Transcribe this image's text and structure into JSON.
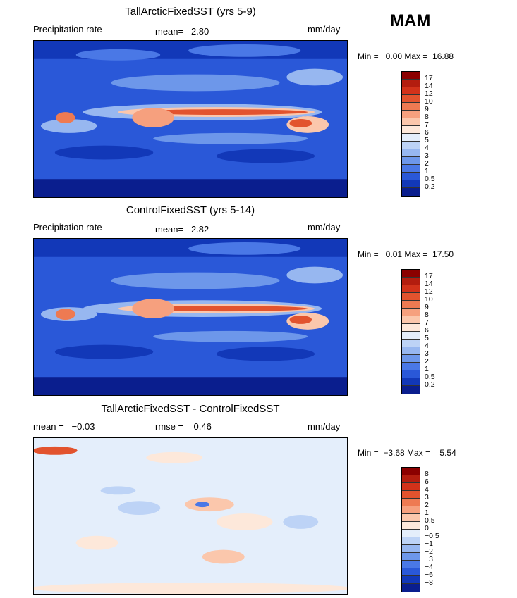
{
  "season": "MAM",
  "panels": [
    {
      "title": "TallArcticFixedSST (yrs 5-9)",
      "left_label": "Precipitation rate",
      "mid_label": "mean=   2.80",
      "units": "mm/day",
      "minmax": "Min =   0.00 Max =  16.88",
      "colors": [
        "#8b0000",
        "#b31d0f",
        "#d2321a",
        "#e2532e",
        "#ee7a52",
        "#f6a07e",
        "#fbc7ac",
        "#fde8da",
        "#e4eefb",
        "#bdd3f6",
        "#97b7f0",
        "#6d97ea",
        "#4a78e6",
        "#2a58d8",
        "#1238b8",
        "#0a1e8e"
      ],
      "ticks": [
        "17",
        "14",
        "12",
        "10",
        "9",
        "8",
        "7",
        "6",
        "5",
        "4",
        "3",
        "2",
        "1",
        "0.5",
        "0.2"
      ]
    },
    {
      "title": "ControlFixedSST (yrs 5-14)",
      "left_label": "Precipitation rate",
      "mid_label": "mean=   2.82",
      "units": "mm/day",
      "minmax": "Min =   0.01 Max =  17.50",
      "colors": [
        "#8b0000",
        "#b31d0f",
        "#d2321a",
        "#e2532e",
        "#ee7a52",
        "#f6a07e",
        "#fbc7ac",
        "#fde8da",
        "#e4eefb",
        "#bdd3f6",
        "#97b7f0",
        "#6d97ea",
        "#4a78e6",
        "#2a58d8",
        "#1238b8",
        "#0a1e8e"
      ],
      "ticks": [
        "17",
        "14",
        "12",
        "10",
        "9",
        "8",
        "7",
        "6",
        "5",
        "4",
        "3",
        "2",
        "1",
        "0.5",
        "0.2"
      ]
    },
    {
      "title": "TallArcticFixedSST - ControlFixedSST",
      "left_label": "mean =   −0.03",
      "mid_label": "rmse =    0.46",
      "units": "mm/day",
      "minmax": "Min =  −3.68 Max =    5.54",
      "colors": [
        "#8b0000",
        "#b31d0f",
        "#d2321a",
        "#e2532e",
        "#ee7a52",
        "#f6a07e",
        "#fbc7ac",
        "#fde8da",
        "#e4eefb",
        "#bdd3f6",
        "#97b7f0",
        "#6d97ea",
        "#4a78e6",
        "#2a58d8",
        "#1238b8",
        "#0a1e8e"
      ],
      "ticks": [
        "8",
        "6",
        "4",
        "3",
        "2",
        "1",
        "0.5",
        "0",
        "−0.5",
        "−1",
        "−2",
        "−3",
        "−4",
        "−6",
        "−8"
      ]
    }
  ]
}
